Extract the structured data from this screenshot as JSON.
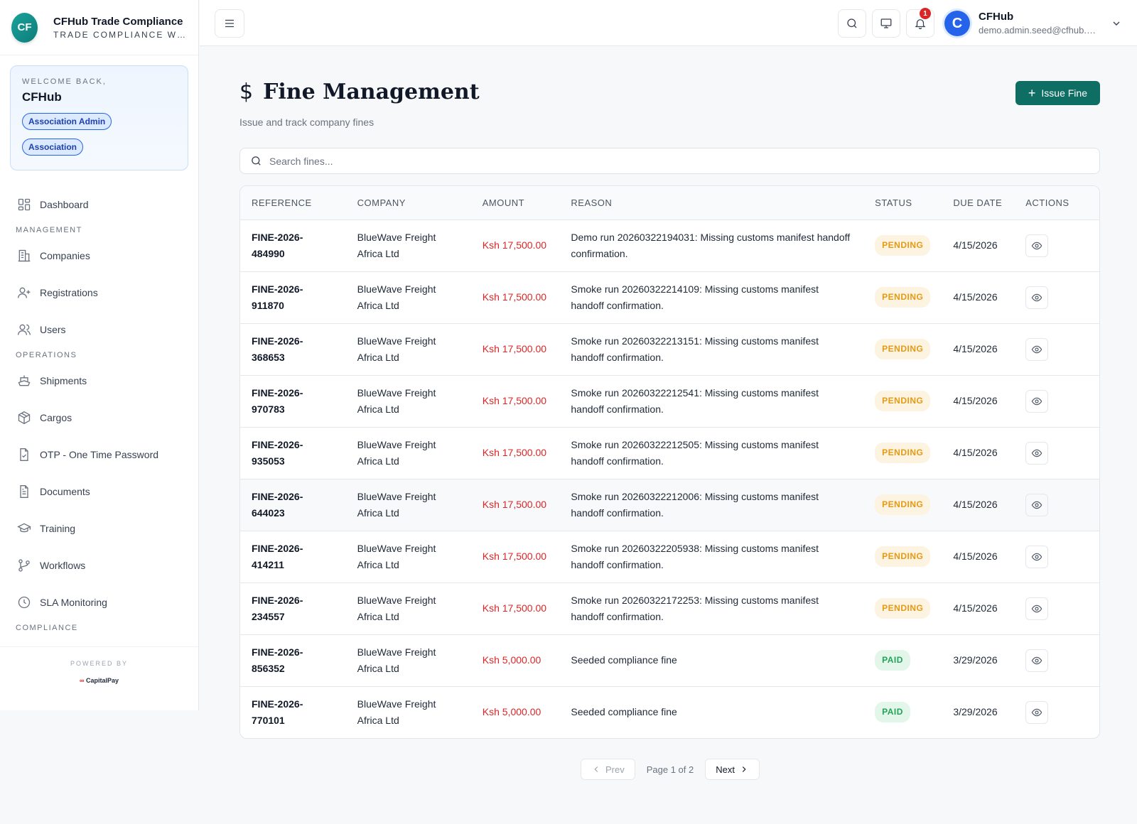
{
  "brand": {
    "logo": "CF",
    "title": "CFHub Trade Compliance",
    "subtitle": "TRADE COMPLIANCE W…"
  },
  "welcome": {
    "greeting": "WELCOME BACK,",
    "name": "CFHub",
    "role": "Association Admin",
    "type": "Association"
  },
  "nav": {
    "dashboard": "Dashboard",
    "section_management": "MANAGEMENT",
    "companies": "Companies",
    "registrations": "Registrations",
    "users": "Users",
    "section_operations": "OPERATIONS",
    "shipments": "Shipments",
    "cargos": "Cargos",
    "otp": "OTP - One Time Password",
    "documents": "Documents",
    "training": "Training",
    "workflows": "Workflows",
    "sla": "SLA Monitoring",
    "section_compliance": "COMPLIANCE"
  },
  "powered": {
    "label": "POWERED BY",
    "logo_text": "CapitalPay"
  },
  "topbar": {
    "notification_count": "1",
    "avatar_letter": "C",
    "user_name": "CFHub",
    "user_email": "demo.admin.seed@cfhub.co.ke"
  },
  "page": {
    "title": "Fine Management",
    "subtitle": "Issue and track company fines",
    "issue_button": "Issue Fine",
    "search_placeholder": "Search fines..."
  },
  "table": {
    "headers": {
      "reference": "REFERENCE",
      "company": "COMPANY",
      "amount": "AMOUNT",
      "reason": "REASON",
      "status": "STATUS",
      "due_date": "DUE DATE",
      "actions": "ACTIONS"
    },
    "rows": [
      {
        "ref1": "FINE-2026-",
        "ref2": "484990",
        "co1": "BlueWave Freight",
        "co2": "Africa Ltd",
        "amount": "Ksh 17,500.00",
        "reason": "Demo run 20260322194031: Missing customs manifest handoff confirmation.",
        "status": "PENDING",
        "due": "4/15/2026"
      },
      {
        "ref1": "FINE-2026-",
        "ref2": "911870",
        "co1": "BlueWave Freight",
        "co2": "Africa Ltd",
        "amount": "Ksh 17,500.00",
        "reason": "Smoke run 20260322214109: Missing customs manifest handoff confirmation.",
        "status": "PENDING",
        "due": "4/15/2026"
      },
      {
        "ref1": "FINE-2026-",
        "ref2": "368653",
        "co1": "BlueWave Freight",
        "co2": "Africa Ltd",
        "amount": "Ksh 17,500.00",
        "reason": "Smoke run 20260322213151: Missing customs manifest handoff confirmation.",
        "status": "PENDING",
        "due": "4/15/2026"
      },
      {
        "ref1": "FINE-2026-",
        "ref2": "970783",
        "co1": "BlueWave Freight",
        "co2": "Africa Ltd",
        "amount": "Ksh 17,500.00",
        "reason": "Smoke run 20260322212541: Missing customs manifest handoff confirmation.",
        "status": "PENDING",
        "due": "4/15/2026"
      },
      {
        "ref1": "FINE-2026-",
        "ref2": "935053",
        "co1": "BlueWave Freight",
        "co2": "Africa Ltd",
        "amount": "Ksh 17,500.00",
        "reason": "Smoke run 20260322212505: Missing customs manifest handoff confirmation.",
        "status": "PENDING",
        "due": "4/15/2026"
      },
      {
        "ref1": "FINE-2026-",
        "ref2": "644023",
        "co1": "BlueWave Freight",
        "co2": "Africa Ltd",
        "amount": "Ksh 17,500.00",
        "reason": "Smoke run 20260322212006: Missing customs manifest handoff confirmation.",
        "status": "PENDING",
        "due": "4/15/2026"
      },
      {
        "ref1": "FINE-2026-",
        "ref2": "414211",
        "co1": "BlueWave Freight",
        "co2": "Africa Ltd",
        "amount": "Ksh 17,500.00",
        "reason": "Smoke run 20260322205938: Missing customs manifest handoff confirmation.",
        "status": "PENDING",
        "due": "4/15/2026"
      },
      {
        "ref1": "FINE-2026-",
        "ref2": "234557",
        "co1": "BlueWave Freight",
        "co2": "Africa Ltd",
        "amount": "Ksh 17,500.00",
        "reason": "Smoke run 20260322172253: Missing customs manifest handoff confirmation.",
        "status": "PENDING",
        "due": "4/15/2026"
      },
      {
        "ref1": "FINE-2026-",
        "ref2": "856352",
        "co1": "BlueWave Freight",
        "co2": "Africa Ltd",
        "amount": "Ksh 5,000.00",
        "reason": "Seeded compliance fine",
        "status": "PAID",
        "due": "3/29/2026"
      },
      {
        "ref1": "FINE-2026-",
        "ref2": "770101",
        "co1": "BlueWave Freight",
        "co2": "Africa Ltd",
        "amount": "Ksh 5,000.00",
        "reason": "Seeded compliance fine",
        "status": "PAID",
        "due": "3/29/2026"
      }
    ]
  },
  "pagination": {
    "prev": "Prev",
    "info": "Page 1 of 2",
    "next": "Next"
  },
  "colors": {
    "accent": "#0f6e63",
    "danger": "#dc2626",
    "pending": "#e59a12",
    "paid": "#22a35a",
    "primary": "#2563eb"
  }
}
